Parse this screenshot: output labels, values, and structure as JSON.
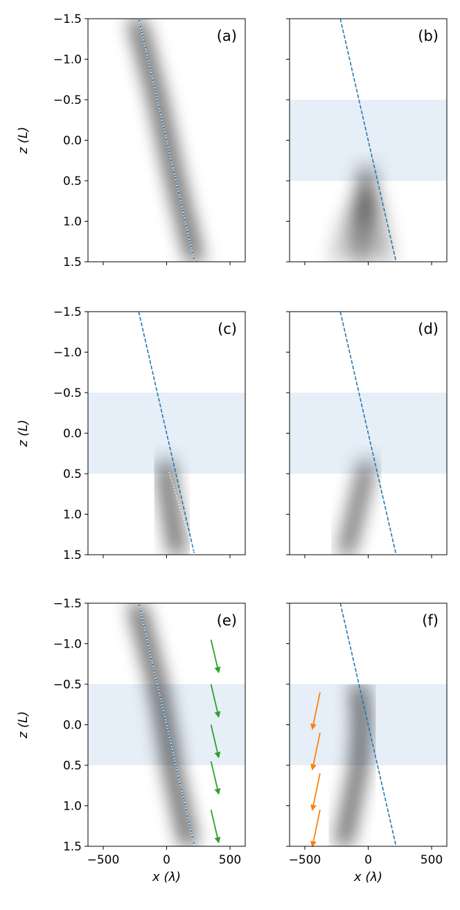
{
  "chart_data": {
    "type": "heatmap",
    "layout": "3 rows x 2 columns, shared x axis (bottom row) and shared y axis (left column)",
    "xlabel": "x (λ)",
    "ylabel": "z (L)",
    "xlim": [
      -620,
      620
    ],
    "ylim": [
      1.5,
      -1.5
    ],
    "y_inverted": true,
    "x_ticks": [
      -500,
      0,
      500
    ],
    "x_tick_labels": [
      "−500",
      "0",
      "500"
    ],
    "y_ticks": [
      -1.5,
      -1.0,
      -0.5,
      0.0,
      0.5,
      1.0,
      1.5
    ],
    "y_tick_labels": [
      "−1.5",
      "−1.0",
      "−0.5",
      "0.0",
      "0.5",
      "1.0",
      "1.5"
    ],
    "colormap": "grayscale (white = 0, black = max intensity)",
    "colors": {
      "dashed_line": "#1f77b4",
      "shaded_band": "#e6eef7",
      "green_arrow": "#2ca02c",
      "orange_arrow": "#ff7f0e"
    },
    "reference_line": {
      "style": "dashed",
      "points": [
        [
          -220,
          -1.5
        ],
        [
          220,
          1.5
        ]
      ]
    },
    "panels": [
      {
        "label": "(a)",
        "shaded_region": null,
        "beams": [
          {
            "segments": [
              [
                -240,
                -1.5
              ],
              [
                -70,
                -0.5
              ],
              [
                70,
                0.5
              ],
              [
                230,
                1.5
              ]
            ],
            "peak": 1.0,
            "sigma": 42
          }
        ],
        "white_dotted_overlay": [
          [
            -220,
            -1.5
          ],
          [
            220,
            1.5
          ]
        ],
        "arrows": []
      },
      {
        "label": "(b)",
        "shaded_region": [
          -0.5,
          0.5
        ],
        "beams": [
          {
            "segments": [
              [
                -10,
                0.35
              ],
              [
                -20,
                0.55
              ],
              [
                -40,
                0.9
              ],
              [
                -60,
                1.5
              ]
            ],
            "peak": 0.95,
            "sigma": 35,
            "fade_in": [
              0.25,
              0.45
            ]
          },
          {
            "segments": [
              [
                -10,
                0.5
              ],
              [
                60,
                0.9
              ],
              [
                130,
                1.5
              ]
            ],
            "peak": 0.4,
            "sigma": 45,
            "fade_in": [
              0.45,
              0.7
            ]
          },
          {
            "segments": [
              [
                -20,
                0.6
              ],
              [
                -150,
                1.0
              ],
              [
                -240,
                1.5
              ]
            ],
            "peak": 0.3,
            "sigma": 45,
            "fade_in": [
              0.5,
              0.75
            ]
          }
        ],
        "white_dotted_overlay": null,
        "arrows": []
      },
      {
        "label": "(c)",
        "shaded_region": [
          -0.5,
          0.5
        ],
        "beams": [
          {
            "segments": [
              [
                -5,
                0.35
              ],
              [
                10,
                0.7
              ],
              [
                90,
                1.5
              ]
            ],
            "peak": 1.0,
            "sigma": 40,
            "fade_in": [
              0.25,
              0.48
            ]
          }
        ],
        "white_dotted_overlay": [
          [
            20,
            0.48
          ],
          [
            220,
            1.5
          ]
        ],
        "arrows": []
      },
      {
        "label": "(d)",
        "shaded_region": [
          -0.5,
          0.5
        ],
        "beams": [
          {
            "segments": [
              [
                -10,
                0.35
              ],
              [
                -30,
                0.55
              ],
              [
                -180,
                1.5
              ]
            ],
            "peak": 0.95,
            "sigma": 38,
            "fade_in": [
              0.25,
              0.48
            ]
          }
        ],
        "white_dotted_overlay": null,
        "arrows": []
      },
      {
        "label": "(e)",
        "shaded_region": [
          -0.5,
          0.5
        ],
        "beams": [
          {
            "segments": [
              [
                -240,
                -1.5
              ],
              [
                -70,
                -0.5
              ],
              [
                -10,
                0.0
              ],
              [
                40,
                0.5
              ],
              [
                180,
                1.5
              ]
            ],
            "peak": 1.0,
            "sigma": 42
          }
        ],
        "white_dotted_overlay": [
          [
            -220,
            -1.5
          ],
          [
            220,
            1.5
          ]
        ],
        "arrows": [
          {
            "color": "green",
            "from": [
              350,
              -1.05
            ],
            "to": [
              410,
              -0.65
            ]
          },
          {
            "color": "green",
            "from": [
              350,
              -0.5
            ],
            "to": [
              410,
              -0.1
            ]
          },
          {
            "color": "green",
            "from": [
              350,
              0.0
            ],
            "to": [
              410,
              0.4
            ]
          },
          {
            "color": "green",
            "from": [
              350,
              0.45
            ],
            "to": [
              410,
              0.85
            ]
          },
          {
            "color": "green",
            "from": [
              350,
              1.05
            ],
            "to": [
              410,
              1.45
            ]
          }
        ]
      },
      {
        "label": "(f)",
        "shaded_region": [
          -0.5,
          0.5
        ],
        "beams": [
          {
            "segments": [
              [
                -70,
                -0.5
              ],
              [
                -50,
                0.0
              ],
              [
                -70,
                0.5
              ],
              [
                -200,
                1.5
              ]
            ],
            "peak": 1.0,
            "sigma": 40,
            "cut_above": -0.5
          }
        ],
        "white_dotted_overlay": null,
        "arrows": [
          {
            "color": "orange",
            "from": [
              -380,
              -0.4
            ],
            "to": [
              -440,
              0.05
            ]
          },
          {
            "color": "orange",
            "from": [
              -380,
              0.1
            ],
            "to": [
              -440,
              0.55
            ]
          },
          {
            "color": "orange",
            "from": [
              -380,
              0.6
            ],
            "to": [
              -440,
              1.05
            ]
          },
          {
            "color": "orange",
            "from": [
              -380,
              1.05
            ],
            "to": [
              -440,
              1.5
            ]
          }
        ]
      }
    ]
  }
}
